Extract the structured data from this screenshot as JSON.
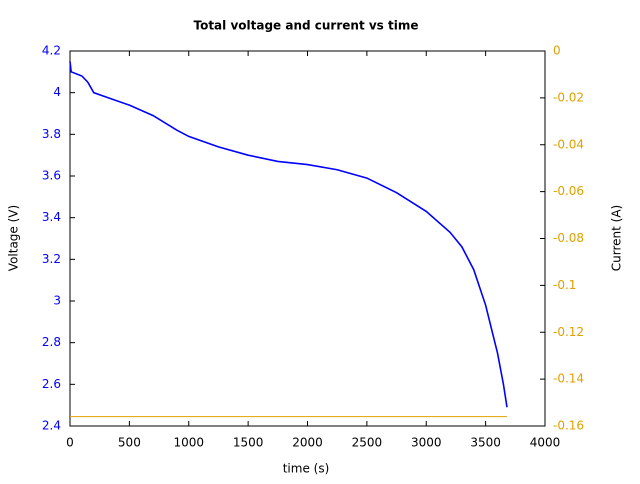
{
  "chart_data": {
    "type": "line",
    "title": "Total voltage and current vs time",
    "x_label": "time (s)",
    "y_label": "Voltage (V)",
    "y2_label": "Current (A)",
    "xlim": [
      0,
      4000
    ],
    "xticks": [
      0,
      500,
      1000,
      1500,
      2000,
      2500,
      3000,
      3500,
      4000
    ],
    "ylim": [
      2.4,
      4.2
    ],
    "yticks": [
      2.4,
      2.6,
      2.8,
      3,
      3.2,
      3.4,
      3.6,
      3.8,
      4,
      4.2
    ],
    "y_color": "#0000ff",
    "y2lim": [
      -0.16,
      0
    ],
    "y2ticks": [
      -0.16,
      -0.14,
      -0.12,
      -0.1,
      -0.08,
      -0.06,
      -0.04,
      -0.02,
      0
    ],
    "y2_color": "#e0a000",
    "grid": false,
    "series": [
      {
        "color": "#0000ff",
        "axis": "y",
        "x": [
          0,
          10,
          100,
          150,
          200,
          300,
          500,
          700,
          900,
          1000,
          1250,
          1500,
          1750,
          2000,
          2250,
          2500,
          2750,
          3000,
          3200,
          3300,
          3400,
          3500,
          3600,
          3650,
          3680
        ],
        "values": [
          4.15,
          4.1,
          4.08,
          4.05,
          4.0,
          3.98,
          3.94,
          3.89,
          3.82,
          3.79,
          3.74,
          3.7,
          3.67,
          3.655,
          3.63,
          3.59,
          3.52,
          3.43,
          3.33,
          3.26,
          3.15,
          2.98,
          2.75,
          2.6,
          2.49
        ]
      },
      {
        "color": "#e0a000",
        "axis": "y2",
        "x": [
          0,
          3680
        ],
        "values": [
          -0.156,
          -0.156
        ]
      }
    ]
  }
}
